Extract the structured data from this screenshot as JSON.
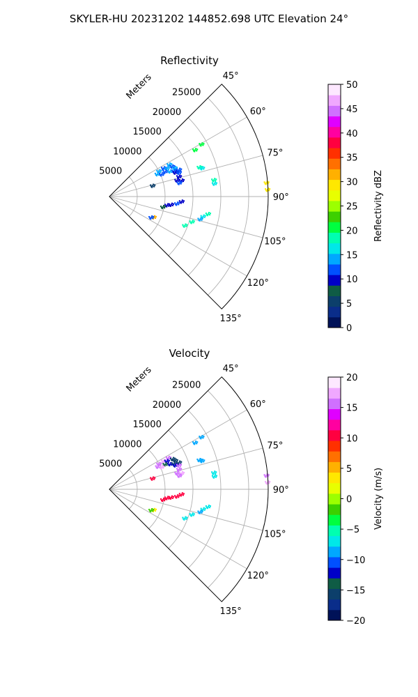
{
  "figure": {
    "title": "SKYLER-HU  20231202  144852.698 UTC Elevation 24°"
  },
  "chart_data": [
    {
      "type": "polar-sector",
      "title": "Reflectivity",
      "range_label": "Meters",
      "range_ticks": [
        "5000",
        "10000",
        "15000",
        "20000",
        "25000"
      ],
      "range_values": [
        5000,
        10000,
        15000,
        20000,
        25000
      ],
      "rmax": 28500,
      "azimuth_ticks": [
        "45°",
        "60°",
        "75°",
        "90°",
        "105°",
        "120°",
        "135°"
      ],
      "azimuth_values": [
        45,
        60,
        75,
        90,
        105,
        120,
        135
      ],
      "theta_range": [
        45,
        135
      ],
      "colorbar": {
        "label": "Reflectivity dBZ",
        "min": 0,
        "max": 50,
        "ticks": [
          "0",
          "5",
          "10",
          "15",
          "20",
          "25",
          "30",
          "35",
          "40",
          "45",
          "50"
        ],
        "tick_values": [
          0,
          5,
          10,
          15,
          20,
          25,
          30,
          35,
          40,
          45,
          50
        ],
        "colormap": "ChaseSpectral"
      },
      "echoes": [
        {
          "az": 60.5,
          "range": 19000,
          "value": 20
        },
        {
          "az": 61.5,
          "range": 17500,
          "value": 20
        },
        {
          "az": 62,
          "range": 12200,
          "value": 15
        },
        {
          "az": 62.5,
          "range": 11000,
          "value": 12
        },
        {
          "az": 63,
          "range": 10000,
          "value": 15
        },
        {
          "az": 64,
          "range": 11500,
          "value": 14
        },
        {
          "az": 64.5,
          "range": 12500,
          "value": 12
        },
        {
          "az": 65,
          "range": 9500,
          "value": 14
        },
        {
          "az": 66,
          "range": 11000,
          "value": 13
        },
        {
          "az": 66.5,
          "range": 12800,
          "value": 14
        },
        {
          "az": 67,
          "range": 10200,
          "value": 12
        },
        {
          "az": 67.5,
          "range": 11800,
          "value": 15
        },
        {
          "az": 68.5,
          "range": 12500,
          "value": 12
        },
        {
          "az": 69,
          "range": 13400,
          "value": 11
        },
        {
          "az": 70,
          "range": 12600,
          "value": 10
        },
        {
          "az": 71,
          "range": 13200,
          "value": 11
        },
        {
          "az": 72,
          "range": 17000,
          "value": 18
        },
        {
          "az": 73,
          "range": 17400,
          "value": 17
        },
        {
          "az": 74,
          "range": 13000,
          "value": 10
        },
        {
          "az": 76,
          "range": 8000,
          "value": 5
        },
        {
          "az": 76.5,
          "range": 12500,
          "value": 10
        },
        {
          "az": 77.5,
          "range": 13300,
          "value": 10
        },
        {
          "az": 79,
          "range": 12800,
          "value": 12
        },
        {
          "az": 81,
          "range": 19000,
          "value": 18
        },
        {
          "az": 83,
          "range": 19000,
          "value": 17
        },
        {
          "az": 85,
          "range": 28300,
          "value": 29
        },
        {
          "az": 87.5,
          "range": 28400,
          "value": 30
        },
        {
          "az": 94,
          "range": 13000,
          "value": 10
        },
        {
          "az": 96,
          "range": 12200,
          "value": 11
        },
        {
          "az": 97.5,
          "range": 11200,
          "value": 9
        },
        {
          "az": 98.5,
          "range": 10500,
          "value": 10
        },
        {
          "az": 100,
          "range": 18000,
          "value": 18
        },
        {
          "az": 101,
          "range": 9800,
          "value": 8
        },
        {
          "az": 102,
          "range": 17200,
          "value": 17
        },
        {
          "az": 104,
          "range": 16800,
          "value": 15
        },
        {
          "az": 107,
          "range": 15500,
          "value": 18
        },
        {
          "az": 111,
          "range": 14500,
          "value": 19
        },
        {
          "az": 115,
          "range": 8800,
          "value": 32
        },
        {
          "az": 116.5,
          "range": 8400,
          "value": 12
        }
      ]
    },
    {
      "type": "polar-sector",
      "title": "Velocity",
      "range_label": "Meters",
      "range_ticks": [
        "5000",
        "10000",
        "15000",
        "20000",
        "25000"
      ],
      "range_values": [
        5000,
        10000,
        15000,
        20000,
        25000
      ],
      "rmax": 28500,
      "azimuth_ticks": [
        "45°",
        "60°",
        "75°",
        "90°",
        "105°",
        "120°",
        "135°"
      ],
      "azimuth_values": [
        45,
        60,
        75,
        90,
        105,
        120,
        135
      ],
      "theta_range": [
        45,
        135
      ],
      "colorbar": {
        "label": "Velocity (m/s)",
        "min": -20,
        "max": 20,
        "ticks": [
          "−20",
          "−15",
          "−10",
          "−5",
          "0",
          "5",
          "10",
          "15",
          "20"
        ],
        "tick_values": [
          -20,
          -15,
          -10,
          -5,
          0,
          5,
          10,
          15,
          20
        ],
        "colormap": "ChaseSpectral"
      },
      "echoes": [
        {
          "az": 60.5,
          "range": 19000,
          "value": -8
        },
        {
          "az": 61.5,
          "range": 17500,
          "value": -8
        },
        {
          "az": 62,
          "range": 12000,
          "value": 16
        },
        {
          "az": 62.5,
          "range": 11000,
          "value": 17
        },
        {
          "az": 63,
          "range": 10000,
          "value": 16
        },
        {
          "az": 64,
          "range": 11500,
          "value": -13
        },
        {
          "az": 64.5,
          "range": 12600,
          "value": -15
        },
        {
          "az": 65,
          "range": 9600,
          "value": 15
        },
        {
          "az": 66,
          "range": 11000,
          "value": -14
        },
        {
          "az": 66.5,
          "range": 12900,
          "value": -16
        },
        {
          "az": 67,
          "range": 10200,
          "value": 17
        },
        {
          "az": 67.5,
          "range": 11800,
          "value": -12
        },
        {
          "az": 68.5,
          "range": 12500,
          "value": -16
        },
        {
          "az": 69,
          "range": 13400,
          "value": -15
        },
        {
          "az": 70,
          "range": 12600,
          "value": -13
        },
        {
          "az": 71,
          "range": 13200,
          "value": 15
        },
        {
          "az": 72,
          "range": 17000,
          "value": -8
        },
        {
          "az": 73,
          "range": 17400,
          "value": -8
        },
        {
          "az": 74,
          "range": 13000,
          "value": 16
        },
        {
          "az": 76,
          "range": 8000,
          "value": 11
        },
        {
          "az": 76.5,
          "range": 12500,
          "value": 16
        },
        {
          "az": 77.5,
          "range": 13300,
          "value": 17
        },
        {
          "az": 79,
          "range": 12800,
          "value": 16
        },
        {
          "az": 81,
          "range": 19000,
          "value": -7
        },
        {
          "az": 83,
          "range": 19000,
          "value": -7
        },
        {
          "az": 85,
          "range": 28300,
          "value": 16
        },
        {
          "az": 87.5,
          "range": 28400,
          "value": 17
        },
        {
          "az": 94,
          "range": 13000,
          "value": 11
        },
        {
          "az": 96,
          "range": 12200,
          "value": 10
        },
        {
          "az": 97.5,
          "range": 11200,
          "value": 11
        },
        {
          "az": 98.5,
          "range": 10500,
          "value": 10
        },
        {
          "az": 100,
          "range": 18000,
          "value": -7
        },
        {
          "az": 101,
          "range": 9800,
          "value": 11
        },
        {
          "az": 102,
          "range": 17200,
          "value": -7
        },
        {
          "az": 104,
          "range": 16800,
          "value": -8
        },
        {
          "az": 107,
          "range": 15500,
          "value": -7
        },
        {
          "az": 111,
          "range": 14500,
          "value": -7
        },
        {
          "az": 115,
          "range": 8800,
          "value": 3
        },
        {
          "az": 116.5,
          "range": 8400,
          "value": -2
        }
      ]
    }
  ],
  "colors": {
    "grid": "#b0b0b0",
    "frame": "#000000",
    "colormap_stops": [
      "#001258",
      "#0a2d8a",
      "#0c3f6b",
      "#0f5c45",
      "#0000c8",
      "#0050ff",
      "#00a8ff",
      "#00e8e8",
      "#00ffb0",
      "#00ff40",
      "#3cd000",
      "#9cff00",
      "#e8ff00",
      "#ffe800",
      "#ffb000",
      "#ff7000",
      "#ff3000",
      "#ff0040",
      "#ff00a0",
      "#e000ff",
      "#d070ff",
      "#f0a8ff",
      "#fde8ff"
    ]
  }
}
